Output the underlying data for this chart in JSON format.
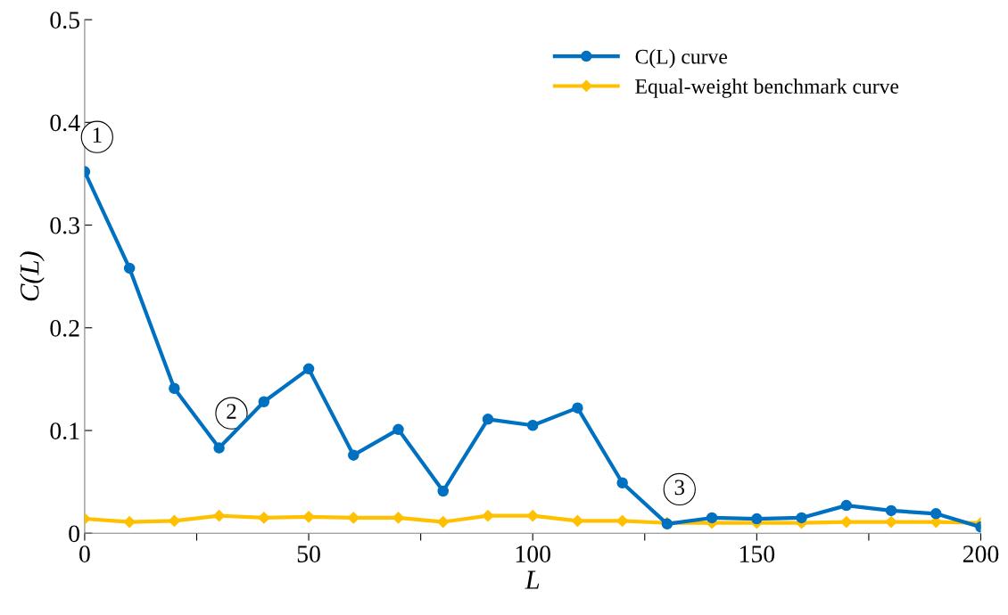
{
  "chart_data": {
    "type": "line",
    "xlabel": "L",
    "ylabel": "C(L)",
    "x": [
      0,
      10,
      20,
      30,
      40,
      50,
      60,
      70,
      80,
      90,
      100,
      110,
      120,
      130,
      140,
      150,
      160,
      170,
      180,
      190,
      200
    ],
    "series": [
      {
        "name": "C(L) curve",
        "color": "#0070c0",
        "marker": "circle",
        "values": [
          0.352,
          0.258,
          0.141,
          0.083,
          0.128,
          0.16,
          0.076,
          0.101,
          0.041,
          0.111,
          0.105,
          0.122,
          0.049,
          0.009,
          0.015,
          0.014,
          0.015,
          0.027,
          0.022,
          0.019,
          0.006
        ]
      },
      {
        "name": "Equal-weight benchmark curve",
        "color": "#ffc000",
        "marker": "diamond",
        "values": [
          0.014,
          0.011,
          0.012,
          0.017,
          0.015,
          0.016,
          0.015,
          0.015,
          0.011,
          0.017,
          0.017,
          0.012,
          0.012,
          0.01,
          0.01,
          0.01,
          0.01,
          0.011,
          0.011,
          0.011,
          0.01
        ]
      }
    ],
    "xlim": [
      0,
      200
    ],
    "xticks": [
      0,
      {
        "value": 25,
        "label": null
      },
      50,
      {
        "value": 75,
        "label": null
      },
      100,
      {
        "value": 125,
        "label": null
      },
      150,
      {
        "value": 175,
        "label": null
      },
      200
    ],
    "ylim": [
      0,
      0.5
    ],
    "yticks": [
      0,
      0.1,
      0.2,
      0.3,
      0.4,
      0.5
    ],
    "annotations": [
      {
        "text": "1",
        "x": 0,
        "y": 0.352
      },
      {
        "text": "2",
        "x": 30,
        "y": 0.083
      },
      {
        "text": "3",
        "x": 130,
        "y": 0.009
      }
    ],
    "legend": "top right",
    "grid": false,
    "line_style": "solid"
  }
}
